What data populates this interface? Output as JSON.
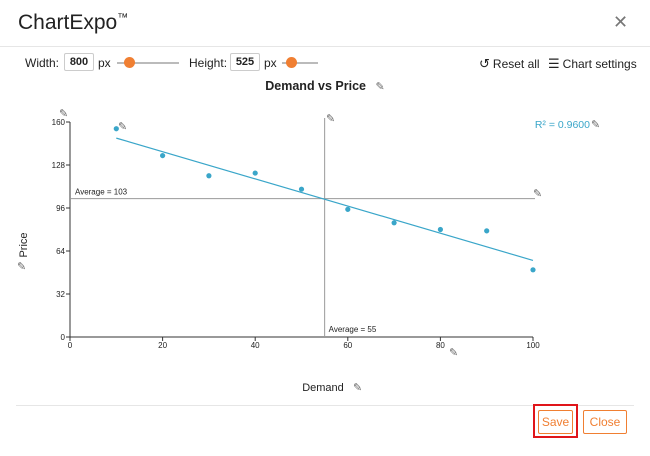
{
  "app": {
    "title": "ChartExpo",
    "trademark": "™",
    "close_icon": "✕"
  },
  "toolbar": {
    "width_label": "Width:",
    "width_value": "800",
    "width_unit": "px",
    "height_label": "Height:",
    "height_value": "525",
    "height_unit": "px",
    "reset_label": "Reset all",
    "settings_label": "Chart settings"
  },
  "accent_color": "#f07f32",
  "series_color": "#3aa6c9",
  "chart_data": {
    "type": "scatter",
    "title": "Demand vs Price",
    "xlabel": "Demand",
    "ylabel": "Price",
    "xlim": [
      0,
      100
    ],
    "ylim": [
      0,
      160
    ],
    "x_ticks": [
      0,
      20,
      40,
      60,
      80,
      100
    ],
    "y_ticks": [
      0,
      32,
      64,
      96,
      128,
      160
    ],
    "points": [
      {
        "x": 10,
        "y": 155
      },
      {
        "x": 20,
        "y": 135
      },
      {
        "x": 30,
        "y": 120
      },
      {
        "x": 40,
        "y": 122
      },
      {
        "x": 50,
        "y": 110
      },
      {
        "x": 60,
        "y": 95
      },
      {
        "x": 70,
        "y": 85
      },
      {
        "x": 80,
        "y": 80
      },
      {
        "x": 90,
        "y": 79
      },
      {
        "x": 100,
        "y": 50
      }
    ],
    "trendline": {
      "x": [
        10,
        100
      ],
      "y": [
        148,
        57
      ]
    },
    "r2_label": "R² = 0.9600",
    "avg_y": {
      "value": 103,
      "label": "Average = 103"
    },
    "avg_x": {
      "value": 55,
      "label": "Average = 55"
    }
  },
  "footer": {
    "save_label": "Save",
    "close_label": "Close"
  }
}
